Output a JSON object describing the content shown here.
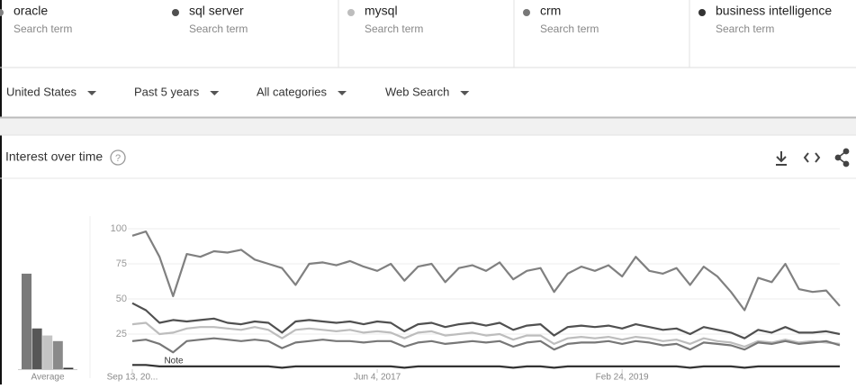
{
  "terms": [
    {
      "name": "oracle",
      "subtitle": "Search term"
    },
    {
      "name": "sql server",
      "subtitle": "Search term"
    },
    {
      "name": "mysql",
      "subtitle": "Search term"
    },
    {
      "name": "crm",
      "subtitle": "Search term"
    },
    {
      "name": "business intelligence",
      "subtitle": "Search term"
    }
  ],
  "filters": [
    "United States",
    "Past 5 years",
    "All categories",
    "Web Search"
  ],
  "panel": {
    "title": "Interest over time"
  },
  "chart_data": [
    {
      "type": "bar",
      "xlabel": "Average",
      "values": [
        68,
        29,
        24,
        20,
        1
      ],
      "colors": [
        "#7a7a7a",
        "#575757",
        "#c4c4c4",
        "#8a8a8a",
        "#333333"
      ],
      "ylim": [
        0,
        100
      ]
    },
    {
      "type": "line",
      "annotation": "Note",
      "categories": [
        "Sep 13, 20...",
        null,
        null,
        null,
        null,
        null,
        null,
        null,
        null,
        null,
        null,
        null,
        null,
        null,
        null,
        null,
        null,
        null,
        "Jun 4, 2017",
        null,
        null,
        null,
        null,
        null,
        null,
        null,
        null,
        null,
        null,
        null,
        null,
        null,
        null,
        null,
        null,
        null,
        "Feb 24, 2019",
        null,
        null,
        null,
        null,
        null,
        null,
        null,
        null,
        null,
        null,
        null,
        null,
        null,
        null,
        null,
        null
      ],
      "ylim": [
        0,
        100
      ],
      "yticks": [
        25,
        50,
        75,
        100
      ],
      "grid": true,
      "series": [
        {
          "name": "oracle",
          "color": "#808080",
          "values": [
            95,
            98,
            80,
            52,
            82,
            80,
            84,
            83,
            85,
            78,
            75,
            72,
            60,
            75,
            76,
            74,
            77,
            73,
            70,
            75,
            63,
            73,
            75,
            62,
            72,
            74,
            70,
            76,
            64,
            70,
            72,
            55,
            68,
            73,
            70,
            74,
            66,
            80,
            70,
            68,
            72,
            60,
            73,
            66,
            55,
            42,
            65,
            62,
            75,
            57,
            55,
            56,
            45
          ]
        },
        {
          "name": "sql server",
          "color": "#505050",
          "values": [
            47,
            42,
            33,
            35,
            34,
            35,
            36,
            33,
            32,
            34,
            33,
            26,
            34,
            35,
            34,
            33,
            34,
            32,
            34,
            33,
            27,
            32,
            33,
            30,
            32,
            33,
            31,
            33,
            28,
            31,
            32,
            24,
            30,
            31,
            30,
            31,
            29,
            32,
            30,
            28,
            29,
            25,
            30,
            28,
            26,
            22,
            28,
            26,
            30,
            26,
            26,
            27,
            25
          ]
        },
        {
          "name": "mysql",
          "color": "#bdbdbd",
          "values": [
            32,
            33,
            25,
            26,
            29,
            30,
            30,
            29,
            28,
            30,
            28,
            22,
            28,
            29,
            28,
            27,
            28,
            26,
            27,
            26,
            22,
            26,
            27,
            24,
            25,
            26,
            24,
            25,
            21,
            24,
            24,
            18,
            22,
            23,
            22,
            23,
            21,
            23,
            22,
            20,
            21,
            18,
            22,
            20,
            19,
            16,
            20,
            19,
            21,
            19,
            20,
            19,
            18
          ]
        },
        {
          "name": "crm",
          "color": "#777777",
          "values": [
            20,
            21,
            18,
            12,
            20,
            21,
            22,
            21,
            20,
            21,
            20,
            15,
            19,
            20,
            21,
            20,
            20,
            19,
            20,
            20,
            16,
            19,
            20,
            18,
            19,
            20,
            19,
            20,
            16,
            19,
            20,
            14,
            18,
            19,
            19,
            20,
            18,
            20,
            19,
            17,
            18,
            14,
            19,
            18,
            17,
            14,
            19,
            18,
            20,
            18,
            19,
            20,
            17
          ]
        },
        {
          "name": "business intelligence",
          "color": "#333333",
          "values": [
            3,
            3,
            2,
            2,
            2,
            2,
            2,
            2,
            2,
            2,
            2,
            1,
            2,
            2,
            2,
            2,
            2,
            2,
            2,
            2,
            1,
            2,
            2,
            2,
            2,
            2,
            2,
            2,
            1,
            2,
            2,
            1,
            2,
            2,
            2,
            2,
            2,
            2,
            2,
            2,
            2,
            1,
            2,
            2,
            2,
            1,
            2,
            2,
            2,
            2,
            2,
            2,
            2
          ]
        }
      ]
    }
  ]
}
